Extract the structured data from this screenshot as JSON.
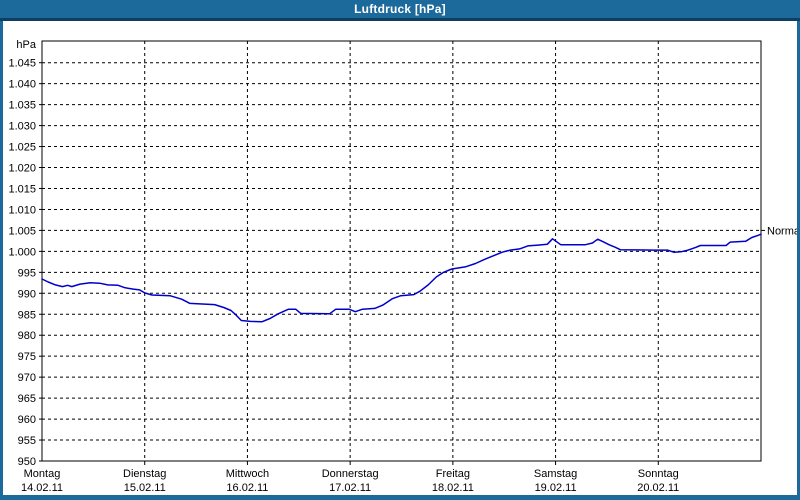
{
  "window": {
    "title": "Luftdruck [hPa]"
  },
  "colors": {
    "titlebar_bg": "#1c699c",
    "titlebar_border": "#0d3f61",
    "frame_border": "#1c699c",
    "plot_bg": "#ffffff",
    "axis": "#000000",
    "grid": "#000000",
    "text": "#000000",
    "series_line": "#0000cc"
  },
  "chart_data": {
    "type": "line",
    "title": "Luftdruck [hPa]",
    "y_unit_label": "hPa",
    "ylabel": "hPa",
    "xlabel": "",
    "ylim": [
      950,
      1045
    ],
    "ytick_step": 5,
    "grid": "dashed",
    "legend_position": "none",
    "ytick_labels_top_to_bottom": [
      "1.045",
      "1.040",
      "1.035",
      "1.030",
      "1.025",
      "1.020",
      "1.015",
      "1.010",
      "1.005",
      "1.000",
      "995",
      "990",
      "985",
      "980",
      "975",
      "970",
      "965",
      "960",
      "955",
      "950"
    ],
    "x_days": [
      {
        "name": "Montag",
        "date": "14.02.11"
      },
      {
        "name": "Dienstag",
        "date": "15.02.11"
      },
      {
        "name": "Mittwoch",
        "date": "16.02.11"
      },
      {
        "name": "Donnerstag",
        "date": "17.02.11"
      },
      {
        "name": "Freitag",
        "date": "18.02.11"
      },
      {
        "name": "Samstag",
        "date": "19.02.11"
      },
      {
        "name": "Sonntag",
        "date": "20.02.11"
      }
    ],
    "x_range_days": [
      0,
      7
    ],
    "normal_marker": {
      "label": "Normal",
      "value": 1005
    },
    "series": [
      {
        "name": "Luftdruck",
        "color": "#0000cc",
        "points": [
          [
            0.0,
            993.4
          ],
          [
            0.06,
            992.7
          ],
          [
            0.13,
            992.0
          ],
          [
            0.2,
            991.6
          ],
          [
            0.25,
            991.9
          ],
          [
            0.29,
            991.6
          ],
          [
            0.37,
            992.2
          ],
          [
            0.47,
            992.5
          ],
          [
            0.56,
            992.4
          ],
          [
            0.64,
            992.0
          ],
          [
            0.74,
            991.9
          ],
          [
            0.81,
            991.3
          ],
          [
            0.89,
            991.0
          ],
          [
            0.95,
            990.8
          ],
          [
            1.0,
            990.1
          ],
          [
            1.07,
            989.6
          ],
          [
            1.25,
            989.4
          ],
          [
            1.36,
            988.6
          ],
          [
            1.44,
            987.6
          ],
          [
            1.68,
            987.3
          ],
          [
            1.77,
            986.6
          ],
          [
            1.84,
            985.9
          ],
          [
            1.89,
            984.8
          ],
          [
            1.94,
            983.5
          ],
          [
            2.03,
            983.3
          ],
          [
            2.14,
            983.2
          ],
          [
            2.22,
            984.0
          ],
          [
            2.3,
            985.1
          ],
          [
            2.4,
            986.2
          ],
          [
            2.47,
            986.2
          ],
          [
            2.52,
            985.2
          ],
          [
            2.8,
            985.1
          ],
          [
            2.86,
            986.2
          ],
          [
            2.99,
            986.2
          ],
          [
            3.05,
            985.6
          ],
          [
            3.12,
            986.2
          ],
          [
            3.24,
            986.4
          ],
          [
            3.32,
            987.2
          ],
          [
            3.41,
            988.7
          ],
          [
            3.49,
            989.4
          ],
          [
            3.62,
            989.7
          ],
          [
            3.68,
            990.5
          ],
          [
            3.76,
            992.0
          ],
          [
            3.84,
            993.9
          ],
          [
            3.91,
            995.0
          ],
          [
            3.99,
            995.8
          ],
          [
            4.12,
            996.3
          ],
          [
            4.22,
            997.1
          ],
          [
            4.31,
            998.1
          ],
          [
            4.4,
            999.0
          ],
          [
            4.48,
            999.8
          ],
          [
            4.56,
            1000.3
          ],
          [
            4.65,
            1000.6
          ],
          [
            4.73,
            1001.3
          ],
          [
            4.83,
            1001.5
          ],
          [
            4.92,
            1001.7
          ],
          [
            4.97,
            1003.0
          ],
          [
            5.01,
            1002.3
          ],
          [
            5.05,
            1001.6
          ],
          [
            5.29,
            1001.6
          ],
          [
            5.36,
            1002.0
          ],
          [
            5.41,
            1002.9
          ],
          [
            5.47,
            1002.2
          ],
          [
            5.52,
            1001.6
          ],
          [
            5.58,
            1001.0
          ],
          [
            5.63,
            1000.4
          ],
          [
            5.97,
            1000.3
          ],
          [
            6.09,
            1000.3
          ],
          [
            6.15,
            999.8
          ],
          [
            6.22,
            999.9
          ],
          [
            6.29,
            1000.3
          ],
          [
            6.36,
            1000.9
          ],
          [
            6.41,
            1001.4
          ],
          [
            6.66,
            1001.4
          ],
          [
            6.7,
            1002.2
          ],
          [
            6.85,
            1002.4
          ],
          [
            6.91,
            1003.3
          ],
          [
            6.97,
            1003.8
          ],
          [
            7.0,
            1004.1
          ]
        ]
      }
    ]
  }
}
